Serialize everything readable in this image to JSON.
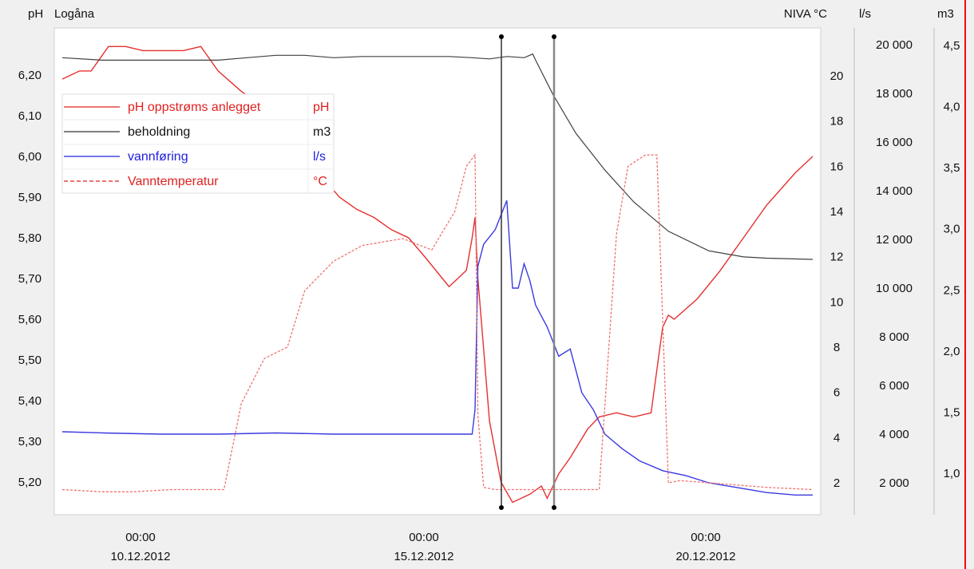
{
  "chart_data": {
    "type": "line",
    "x_dates": [
      "00:00",
      "00:00",
      "00:00"
    ],
    "x_date_labels": [
      "10.12.2012",
      "15.12.2012",
      "20.12.2012"
    ],
    "axes": {
      "ph": {
        "label": "pH",
        "title": "Logåna",
        "ticks": [
          "6,20",
          "6,10",
          "6,00",
          "5,90",
          "5,80",
          "5,70",
          "5,60",
          "5,50",
          "5,40",
          "5,30",
          "5,20"
        ],
        "range": [
          5.15,
          6.27
        ]
      },
      "temp": {
        "label": "NIVA °C",
        "ticks": [
          "20",
          "18",
          "16",
          "14",
          "12",
          "10",
          "8",
          "6",
          "4",
          "2"
        ],
        "range": [
          1.0,
          23.0
        ]
      },
      "flow": {
        "label": "l/s",
        "ticks": [
          "20 000",
          "18 000",
          "16 000",
          "14 000",
          "12 000",
          "10 000",
          "8 000",
          "6 000",
          "4 000",
          "2 000"
        ],
        "range": [
          600,
          20000
        ]
      },
      "volume": {
        "label": "m3",
        "ticks": [
          "4,5",
          "4,0",
          "3,5",
          "3,0",
          "2,5",
          "2,0",
          "1,5",
          "1,0"
        ],
        "range": [
          0.72,
          4.52
        ]
      }
    },
    "legend": [
      {
        "name": "pH oppstrøms anlegget",
        "unit": "pH",
        "color": "#e02020",
        "dash": "solid"
      },
      {
        "name": "beholdning",
        "unit": "m3",
        "color": "#333333",
        "dash": "solid"
      },
      {
        "name": "vannføring",
        "unit": "l/s",
        "color": "#2020e0",
        "dash": "solid"
      },
      {
        "name": "Vanntemperatur",
        "unit": "°C",
        "color": "#e02020",
        "dash": "dashed"
      }
    ],
    "series": [
      {
        "name": "pH oppstrøms anlegget",
        "axis": "ph",
        "x": [
          8.8,
          8.95,
          9.1,
          9.3,
          9.6,
          9.9,
          10.2,
          10.5,
          10.9,
          11.2,
          11.5,
          11.9,
          12.2,
          12.4,
          12.6,
          12.8,
          13.0,
          13.3,
          13.6,
          13.9,
          14.2,
          14.5,
          14.8,
          15.1,
          15.5,
          15.8,
          15.9,
          15.95,
          16.0,
          16.2,
          16.4,
          16.6,
          16.9,
          17.1,
          17.2,
          17.4,
          17.6,
          17.9,
          18.1,
          18.4,
          18.7,
          19.0,
          19.2,
          19.3,
          19.4,
          19.8,
          20.2,
          20.6,
          21.0,
          21.5,
          21.8
        ],
        "y": [
          6.19,
          6.2,
          6.21,
          6.21,
          6.27,
          6.27,
          6.26,
          6.26,
          6.26,
          6.27,
          6.21,
          6.16,
          6.13,
          6.1,
          6.05,
          6.02,
          5.98,
          5.95,
          5.9,
          5.87,
          5.85,
          5.82,
          5.8,
          5.75,
          5.68,
          5.72,
          5.8,
          5.85,
          5.7,
          5.35,
          5.2,
          5.15,
          5.17,
          5.19,
          5.16,
          5.22,
          5.26,
          5.33,
          5.36,
          5.37,
          5.36,
          5.37,
          5.58,
          5.61,
          5.6,
          5.65,
          5.72,
          5.8,
          5.88,
          5.96,
          6.0
        ]
      },
      {
        "name": "beholdning",
        "axis": "volume",
        "x": [
          8.8,
          9.5,
          10.5,
          11.5,
          12.0,
          12.5,
          13.0,
          13.5,
          14.0,
          14.5,
          15.0,
          15.5,
          15.9,
          16.2,
          16.5,
          16.8,
          16.95,
          17.0,
          17.3,
          17.7,
          18.2,
          18.7,
          19.3,
          20.0,
          20.6,
          21.0,
          21.8
        ],
        "y": [
          4.4,
          4.38,
          4.38,
          4.38,
          4.4,
          4.42,
          4.42,
          4.4,
          4.41,
          4.41,
          4.41,
          4.41,
          4.4,
          4.39,
          4.41,
          4.4,
          4.43,
          4.38,
          4.1,
          3.78,
          3.48,
          3.22,
          2.98,
          2.82,
          2.77,
          2.76,
          2.75
        ]
      },
      {
        "name": "vannføring",
        "axis": "flow",
        "x": [
          8.8,
          9.5,
          10.5,
          11.5,
          12.5,
          13.5,
          14.5,
          15.5,
          15.9,
          15.95,
          16.0,
          16.1,
          16.3,
          16.5,
          16.6,
          16.7,
          16.8,
          16.9,
          17.0,
          17.2,
          17.4,
          17.6,
          17.8,
          18.0,
          18.2,
          18.5,
          18.8,
          19.2,
          19.6,
          20.0,
          20.5,
          21.0,
          21.5,
          21.8
        ],
        "y": [
          4100,
          4050,
          4000,
          4000,
          4050,
          4000,
          4000,
          4000,
          4000,
          5000,
          10900,
          11800,
          12400,
          13600,
          10000,
          10000,
          11000,
          10300,
          9300,
          8400,
          7200,
          7500,
          5700,
          5000,
          4000,
          3400,
          2900,
          2500,
          2300,
          2000,
          1800,
          1600,
          1500,
          1500
        ]
      },
      {
        "name": "Vanntemperatur",
        "axis": "temp",
        "x": [
          8.8,
          9.5,
          10.0,
          10.7,
          11.6,
          11.9,
          12.3,
          12.7,
          13.0,
          13.5,
          14.0,
          14.7,
          15.2,
          15.6,
          15.8,
          15.95,
          16.0,
          16.1,
          16.3,
          16.6,
          16.9,
          17.1,
          17.3,
          17.6,
          17.9,
          18.1,
          18.4,
          18.6,
          18.9,
          19.1,
          19.3,
          19.5,
          20.0,
          21.0,
          21.8
        ],
        "y": [
          1.7,
          1.6,
          1.6,
          1.7,
          1.7,
          5.5,
          7.5,
          8.0,
          10.5,
          11.8,
          12.5,
          12.8,
          12.3,
          14.0,
          16.0,
          16.5,
          5.0,
          1.8,
          1.7,
          1.7,
          1.7,
          1.7,
          1.7,
          1.7,
          1.7,
          1.7,
          13.0,
          16.0,
          16.5,
          16.5,
          2.0,
          2.1,
          2.0,
          1.8,
          1.7
        ]
      }
    ],
    "cursor_lines": [
      16.0,
      17.0
    ]
  }
}
